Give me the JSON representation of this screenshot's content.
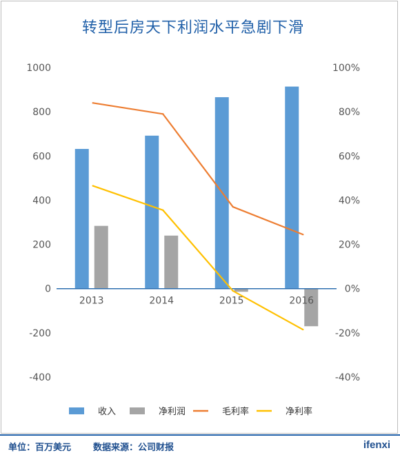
{
  "chart_data": {
    "type": "bar",
    "title": "转型后房天下利润水平急剧下滑",
    "categories": [
      "2013",
      "2014",
      "2015",
      "2016"
    ],
    "series": [
      {
        "name": "收入",
        "kind": "bar",
        "axis": "left",
        "color": "#5b9bd5",
        "values": [
          632,
          692,
          866,
          914
        ]
      },
      {
        "name": "净利润",
        "kind": "bar",
        "axis": "left",
        "color": "#a5a5a5",
        "values": [
          284,
          240,
          -14,
          -170
        ]
      },
      {
        "name": "毛利率",
        "kind": "line",
        "axis": "right",
        "color": "#ed7d31",
        "values": [
          0.84,
          0.79,
          0.37,
          0.245
        ]
      },
      {
        "name": "净利率",
        "kind": "line",
        "axis": "right",
        "color": "#ffc000",
        "values": [
          0.465,
          0.355,
          -0.01,
          -0.185
        ]
      }
    ],
    "y_left": {
      "min": -400,
      "max": 1000,
      "ticks": [
        "1000",
        "800",
        "600",
        "400",
        "200",
        "0",
        "-200",
        "-400"
      ]
    },
    "y_right": {
      "min": -0.4,
      "max": 1.0,
      "ticks": [
        "100%",
        "80%",
        "60%",
        "40%",
        "20%",
        "0%",
        "-20%",
        "-40%"
      ]
    },
    "grid": false,
    "legend": "bottom"
  },
  "footer": {
    "unit": "单位：百万美元",
    "source": "数据来源：公司财报",
    "logo": "ifenxi"
  }
}
